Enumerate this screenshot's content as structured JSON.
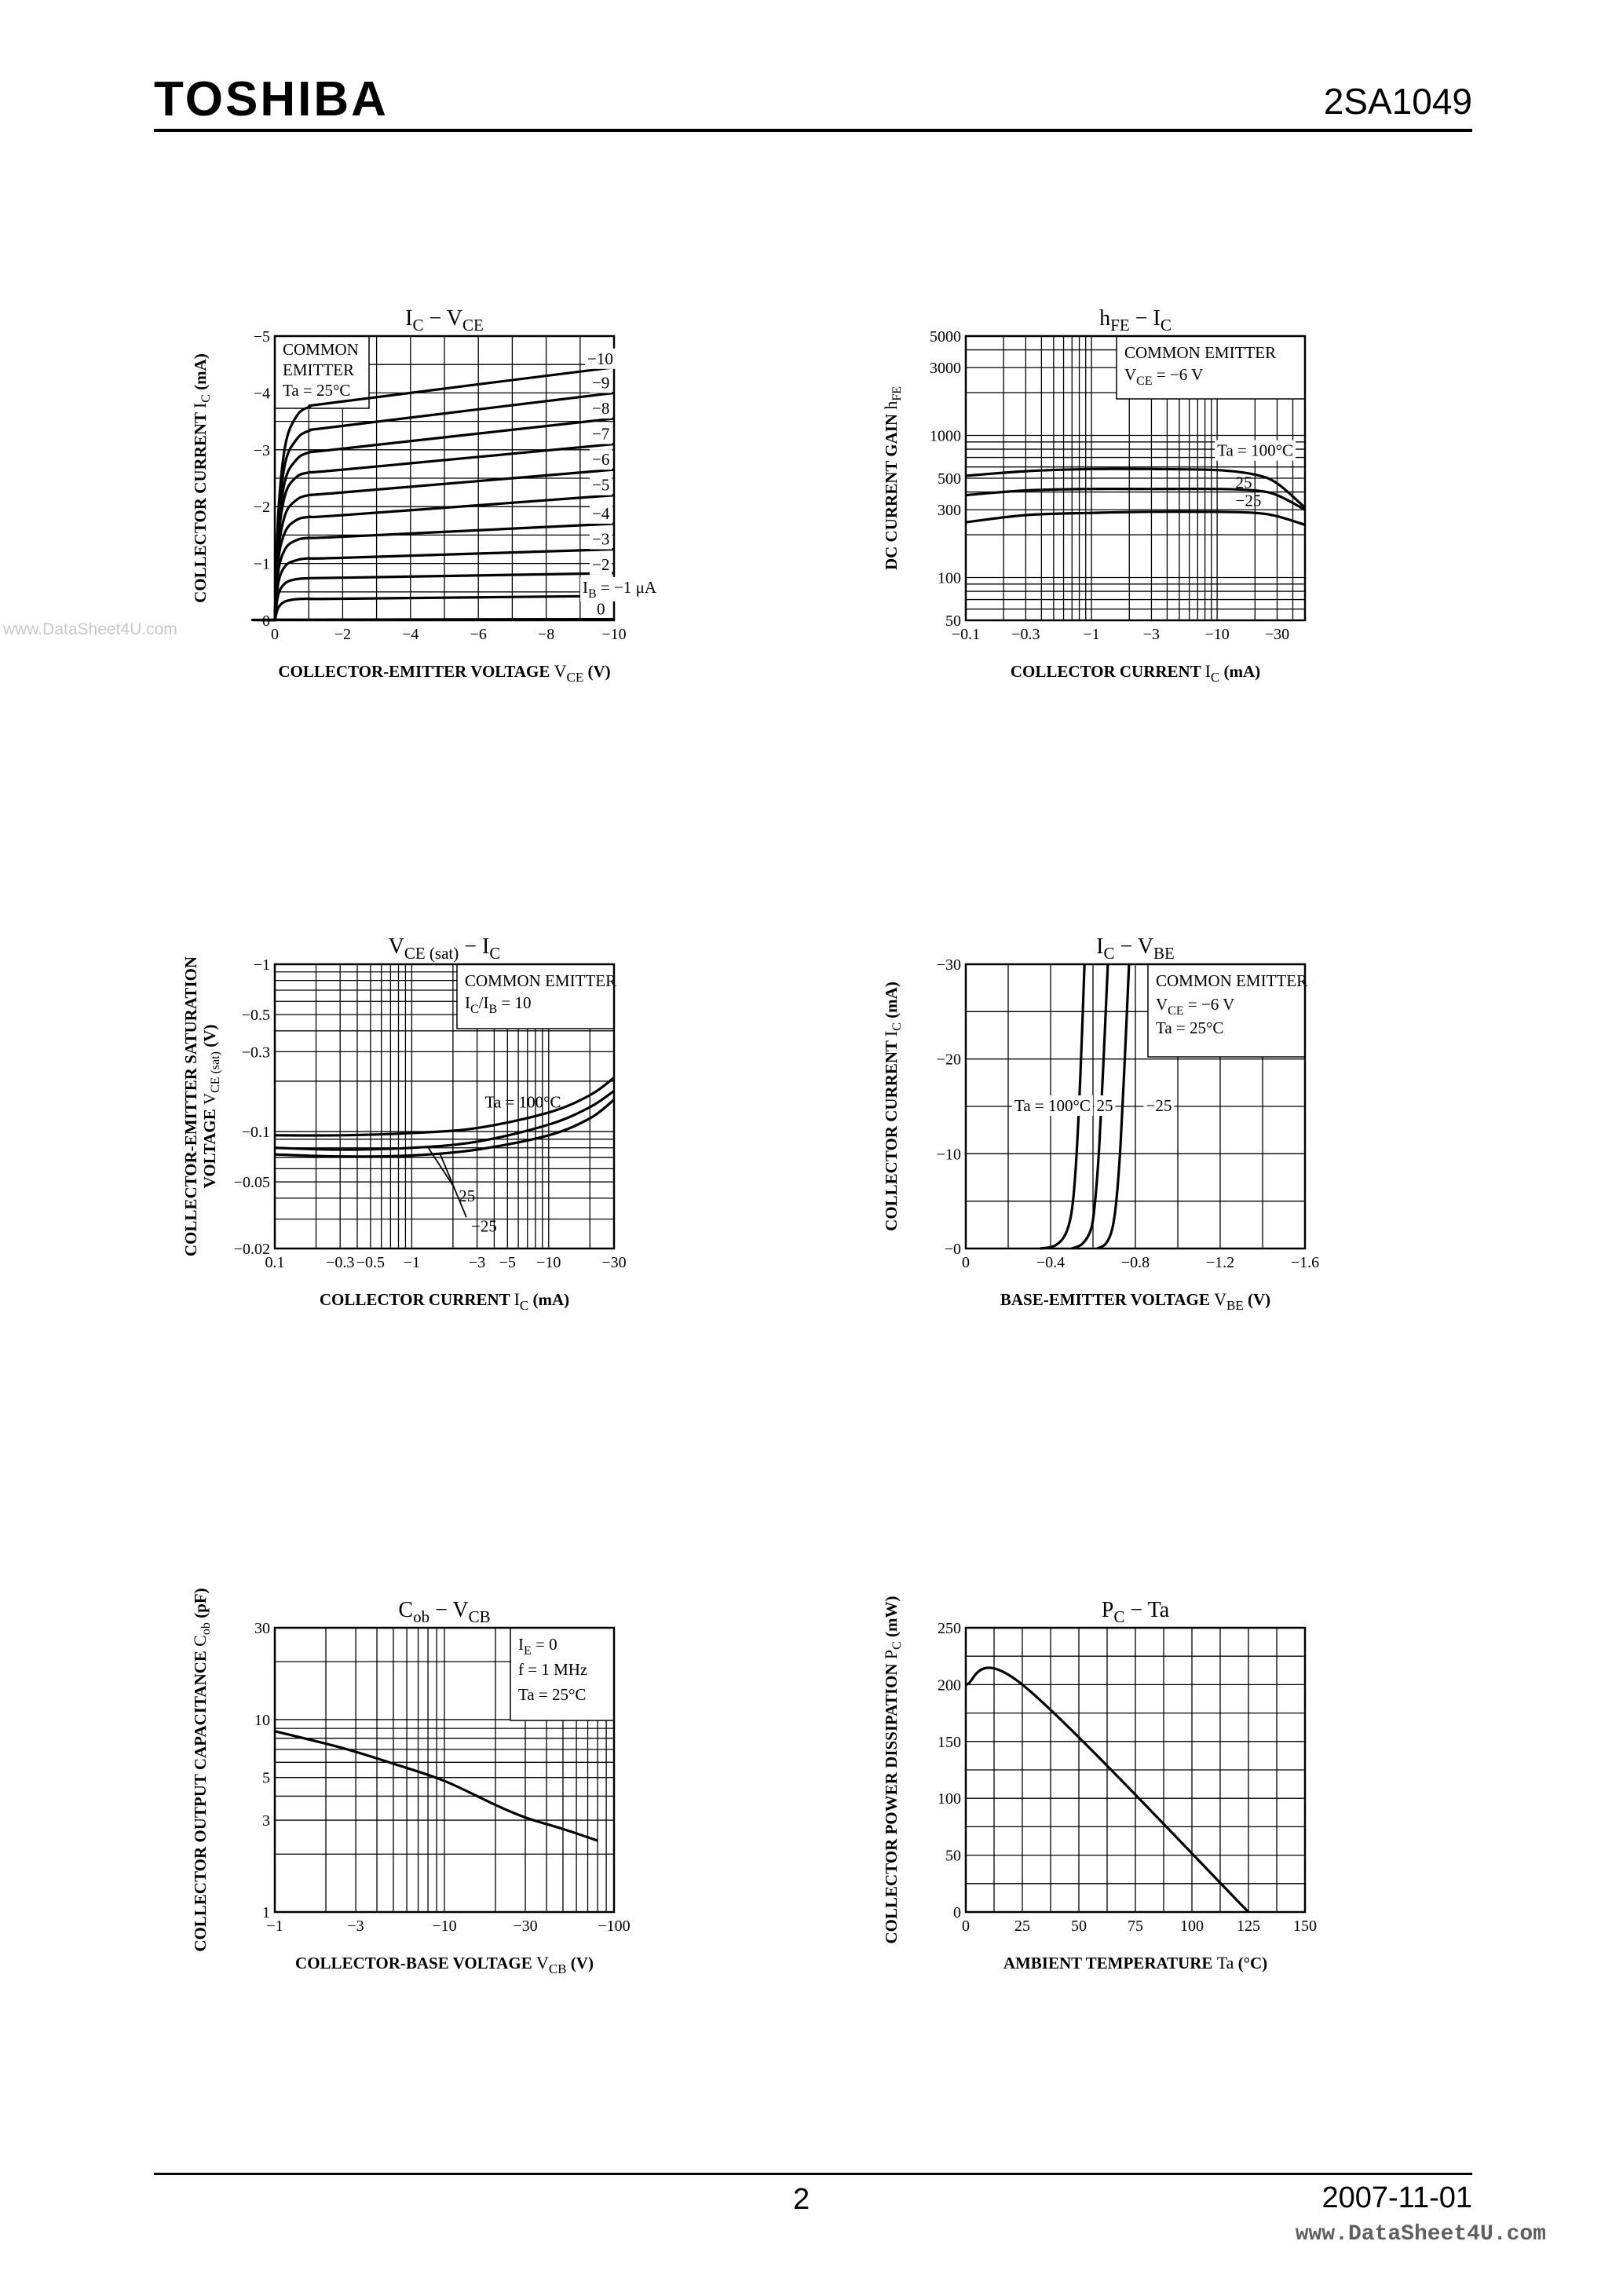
{
  "header": {
    "brand": "TOSHIBA",
    "part_number": "2SA1049"
  },
  "footer": {
    "page": "2",
    "date": "2007-11-01"
  },
  "watermark": {
    "left": "www.DataSheet4U.com",
    "bottom": "www.DataSheet4U.com"
  },
  "chart_data": [
    {
      "id": "ic-vce",
      "type": "line",
      "title": {
        "main": "I",
        "sub": "C",
        "sep": " − ",
        "main2": "V",
        "sub2": "CE"
      },
      "xlabel": {
        "text": "COLLECTOR-EMITTER VOLTAGE",
        "sym": "V",
        "sub": "CE",
        "unit": "(V)"
      },
      "ylabel": {
        "text": "COLLECTOR CURRENT",
        "sym": "I",
        "sub": "C",
        "unit": "(mA)"
      },
      "xscale": "linear",
      "yscale": "linear",
      "xlim": [
        0,
        10
      ],
      "ylim": [
        0,
        5
      ],
      "xgrid": [
        0,
        1,
        2,
        3,
        4,
        5,
        6,
        7,
        8,
        9,
        10
      ],
      "ygrid": [
        0,
        0.5,
        1,
        1.5,
        2,
        2.5,
        3,
        3.5,
        4,
        4.5,
        5
      ],
      "xticks": [
        {
          "v": 0,
          "t": "0"
        },
        {
          "v": 2,
          "t": "−2"
        },
        {
          "v": 4,
          "t": "−4"
        },
        {
          "v": 6,
          "t": "−6"
        },
        {
          "v": 8,
          "t": "−8"
        },
        {
          "v": 10,
          "t": "−10"
        }
      ],
      "yticks": [
        {
          "v": 0,
          "t": "−0"
        },
        {
          "v": 1,
          "t": "−1"
        },
        {
          "v": 2,
          "t": "−2"
        },
        {
          "v": 3,
          "t": "−3"
        },
        {
          "v": 4,
          "t": "−4"
        },
        {
          "v": 5,
          "t": "−5"
        }
      ],
      "legend_box": {
        "lines": [
          "COMMON",
          "EMITTER",
          "Ta = 25°C"
        ],
        "position": "top-left"
      },
      "series": [
        {
          "name": "0",
          "label": "0",
          "x": [
            0,
            0.1,
            10
          ],
          "y": [
            0,
            0.01,
            0.02
          ]
        },
        {
          "name": "IB=-1",
          "label": "I_B = −1 μA",
          "x": [
            0,
            0.1,
            0.3,
            0.6,
            1,
            2,
            10
          ],
          "y": [
            0,
            0.22,
            0.33,
            0.37,
            0.38,
            0.38,
            0.43
          ]
        },
        {
          "name": "-2",
          "label": "−2",
          "x": [
            0,
            0.1,
            0.3,
            0.6,
            1,
            2,
            10
          ],
          "y": [
            0,
            0.45,
            0.65,
            0.72,
            0.74,
            0.75,
            0.83
          ]
        },
        {
          "name": "-3",
          "label": "−3",
          "x": [
            0,
            0.1,
            0.3,
            0.6,
            1,
            2,
            10
          ],
          "y": [
            0,
            0.65,
            0.95,
            1.05,
            1.09,
            1.1,
            1.25
          ]
        },
        {
          "name": "-4",
          "label": "−4",
          "x": [
            0,
            0.1,
            0.3,
            0.6,
            1,
            2,
            10
          ],
          "y": [
            0,
            0.85,
            1.25,
            1.4,
            1.45,
            1.47,
            1.7
          ]
        },
        {
          "name": "-5",
          "label": "−5",
          "x": [
            0,
            0.1,
            0.3,
            0.6,
            1,
            2,
            10
          ],
          "y": [
            0,
            1.05,
            1.55,
            1.75,
            1.82,
            1.85,
            2.2
          ]
        },
        {
          "name": "-6",
          "label": "−6",
          "x": [
            0,
            0.1,
            0.3,
            0.6,
            1,
            2,
            10
          ],
          "y": [
            0,
            1.2,
            1.85,
            2.1,
            2.2,
            2.25,
            2.65
          ]
        },
        {
          "name": "-7",
          "label": "−7",
          "x": [
            0,
            0.1,
            0.3,
            0.6,
            1,
            2,
            10
          ],
          "y": [
            0,
            1.4,
            2.2,
            2.5,
            2.6,
            2.65,
            3.1
          ]
        },
        {
          "name": "-8",
          "label": "−8",
          "x": [
            0,
            0.1,
            0.3,
            0.6,
            1,
            2,
            10
          ],
          "y": [
            0,
            1.55,
            2.45,
            2.8,
            2.95,
            3.02,
            3.55
          ]
        },
        {
          "name": "-9",
          "label": "−9",
          "x": [
            0,
            0.1,
            0.3,
            0.6,
            1,
            2,
            10
          ],
          "y": [
            0,
            1.7,
            2.75,
            3.15,
            3.33,
            3.42,
            4.0
          ]
        },
        {
          "name": "-10",
          "label": "−10",
          "x": [
            0,
            0.1,
            0.3,
            0.6,
            1,
            2,
            10
          ],
          "y": [
            0,
            1.85,
            3.05,
            3.55,
            3.75,
            3.85,
            4.45
          ]
        }
      ]
    },
    {
      "id": "hfe-ic",
      "type": "line",
      "title": {
        "main": "h",
        "sub": "FE",
        "sep": " − ",
        "main2": "I",
        "sub2": "C"
      },
      "xlabel": {
        "text": "COLLECTOR CURRENT",
        "sym": "I",
        "sub": "C",
        "unit": "(mA)"
      },
      "ylabel": {
        "text": "DC CURRENT GAIN",
        "sym": "h",
        "sub": "FE",
        "unit": ""
      },
      "xscale": "log",
      "yscale": "log",
      "xlim": [
        0.1,
        50
      ],
      "ylim": [
        50,
        5000
      ],
      "xgrid": [
        0.1,
        0.2,
        0.3,
        0.4,
        0.5,
        0.6,
        0.7,
        0.8,
        0.9,
        1,
        2,
        3,
        4,
        5,
        6,
        7,
        8,
        9,
        10,
        20,
        30,
        40,
        50
      ],
      "ygrid": [
        50,
        60,
        70,
        80,
        90,
        100,
        200,
        300,
        400,
        500,
        600,
        700,
        800,
        900,
        1000,
        2000,
        3000,
        4000,
        5000
      ],
      "xticks": [
        {
          "v": 0.1,
          "t": "−0.1"
        },
        {
          "v": 0.3,
          "t": "−0.3"
        },
        {
          "v": 1,
          "t": "−1"
        },
        {
          "v": 3,
          "t": "−3"
        },
        {
          "v": 10,
          "t": "−10"
        },
        {
          "v": 30,
          "t": "−30"
        }
      ],
      "yticks": [
        {
          "v": 50,
          "t": "50"
        },
        {
          "v": 100,
          "t": "100"
        },
        {
          "v": 300,
          "t": "300"
        },
        {
          "v": 500,
          "t": "500"
        },
        {
          "v": 1000,
          "t": "1000"
        },
        {
          "v": 3000,
          "t": "3000"
        },
        {
          "v": 5000,
          "t": "5000"
        }
      ],
      "legend_box": {
        "lines": [
          "COMMON EMITTER",
          "V_CE = −6 V"
        ],
        "position": "top-right"
      },
      "series": [
        {
          "name": "Ta=100",
          "label": "Ta = 100°C",
          "x": [
            0.1,
            0.3,
            1,
            3,
            10,
            20,
            30,
            50
          ],
          "y": [
            520,
            560,
            580,
            580,
            570,
            530,
            460,
            310
          ]
        },
        {
          "name": "Ta=25",
          "label": "25",
          "x": [
            0.1,
            0.3,
            1,
            3,
            10,
            20,
            30,
            50
          ],
          "y": [
            380,
            410,
            420,
            420,
            420,
            410,
            380,
            300
          ]
        },
        {
          "name": "Ta=-25",
          "label": "−25",
          "x": [
            0.1,
            0.3,
            1,
            3,
            10,
            20,
            30,
            50
          ],
          "y": [
            245,
            275,
            285,
            290,
            290,
            285,
            270,
            235
          ]
        }
      ]
    },
    {
      "id": "vcesat-ic",
      "type": "line",
      "title": {
        "main": "V",
        "sub": "CE (sat)",
        "sep": " − ",
        "main2": "I",
        "sub2": "C"
      },
      "xlabel": {
        "text": "COLLECTOR CURRENT",
        "sym": "I",
        "sub": "C",
        "unit": "(mA)"
      },
      "ylabel": {
        "text": "COLLECTOR-EMITTER SATURATION",
        "text2": "VOLTAGE",
        "sym": "V",
        "sub": "CE (sat)",
        "unit": "(V)"
      },
      "xscale": "log",
      "yscale": "log",
      "xlim": [
        0.1,
        30
      ],
      "ylim": [
        0.02,
        1
      ],
      "xgrid": [
        0.1,
        0.2,
        0.3,
        0.4,
        0.5,
        0.6,
        0.7,
        0.8,
        0.9,
        1,
        2,
        3,
        4,
        5,
        6,
        7,
        8,
        9,
        10,
        20,
        30
      ],
      "ygrid": [
        0.02,
        0.03,
        0.04,
        0.05,
        0.06,
        0.07,
        0.08,
        0.09,
        0.1,
        0.2,
        0.3,
        0.4,
        0.5,
        0.6,
        0.7,
        0.8,
        0.9,
        1
      ],
      "xticks": [
        {
          "v": 0.1,
          "t": "0.1"
        },
        {
          "v": 0.3,
          "t": "−0.3"
        },
        {
          "v": 0.5,
          "t": "−0.5"
        },
        {
          "v": 1,
          "t": "−1"
        },
        {
          "v": 3,
          "t": "−3"
        },
        {
          "v": 5,
          "t": "−5"
        },
        {
          "v": 10,
          "t": "−10"
        },
        {
          "v": 30,
          "t": "−30"
        }
      ],
      "yticks": [
        {
          "v": 0.02,
          "t": "−0.02"
        },
        {
          "v": 0.05,
          "t": "−0.05"
        },
        {
          "v": 0.1,
          "t": "−0.1"
        },
        {
          "v": 0.3,
          "t": "−0.3"
        },
        {
          "v": 0.5,
          "t": "−0.5"
        },
        {
          "v": 1,
          "t": "−1"
        }
      ],
      "legend_box": {
        "lines": [
          "COMMON EMITTER",
          "I_C/I_B = 10"
        ],
        "position": "top-right"
      },
      "series": [
        {
          "name": "Ta=100",
          "label": "Ta = 100°C",
          "x": [
            0.1,
            0.3,
            1,
            3,
            10,
            20,
            30
          ],
          "y": [
            0.095,
            0.095,
            0.098,
            0.105,
            0.13,
            0.165,
            0.21
          ]
        },
        {
          "name": "Ta=25",
          "label": "25",
          "x": [
            0.1,
            0.3,
            1,
            3,
            10,
            20,
            30
          ],
          "y": [
            0.08,
            0.078,
            0.08,
            0.087,
            0.11,
            0.14,
            0.175
          ]
        },
        {
          "name": "Ta=-25",
          "label": "−25",
          "x": [
            0.1,
            0.3,
            1,
            3,
            10,
            20,
            30
          ],
          "y": [
            0.073,
            0.071,
            0.072,
            0.078,
            0.095,
            0.12,
            0.155
          ]
        }
      ]
    },
    {
      "id": "ic-vbe",
      "type": "line",
      "title": {
        "main": "I",
        "sub": "C",
        "sep": " − ",
        "main2": "V",
        "sub2": "BE"
      },
      "xlabel": {
        "text": "BASE-EMITTER VOLTAGE",
        "sym": "V",
        "sub": "BE",
        "unit": "(V)"
      },
      "ylabel": {
        "text": "COLLECTOR CURRENT",
        "sym": "I",
        "sub": "C",
        "unit": "(mA)"
      },
      "xscale": "linear",
      "yscale": "linear",
      "xlim": [
        0,
        1.6
      ],
      "ylim": [
        0,
        30
      ],
      "xgrid": [
        0,
        0.2,
        0.4,
        0.6,
        0.8,
        1.0,
        1.2,
        1.4,
        1.6
      ],
      "ygrid": [
        0,
        5,
        10,
        15,
        20,
        25,
        30
      ],
      "xticks": [
        {
          "v": 0,
          "t": "0"
        },
        {
          "v": 0.4,
          "t": "−0.4"
        },
        {
          "v": 0.8,
          "t": "−0.8"
        },
        {
          "v": 1.2,
          "t": "−1.2"
        },
        {
          "v": 1.6,
          "t": "−1.6"
        }
      ],
      "yticks": [
        {
          "v": 0,
          "t": "−0"
        },
        {
          "v": 10,
          "t": "−10"
        },
        {
          "v": 20,
          "t": "−20"
        },
        {
          "v": 30,
          "t": "−30"
        }
      ],
      "legend_box": {
        "lines": [
          "COMMON EMITTER",
          "V_CE = −6 V",
          "Ta = 25°C"
        ],
        "position": "top-right"
      },
      "series": [
        {
          "name": "Ta=100",
          "label": "Ta = 100°C",
          "x": [
            0.35,
            0.42,
            0.47,
            0.5,
            0.52,
            0.54,
            0.56
          ],
          "y": [
            0,
            0.3,
            1.5,
            4,
            9,
            18,
            30
          ]
        },
        {
          "name": "Ta=25",
          "label": "25",
          "x": [
            0.5,
            0.55,
            0.59,
            0.61,
            0.63,
            0.65,
            0.67
          ],
          "y": [
            0,
            0.5,
            2,
            5,
            11,
            20,
            30
          ]
        },
        {
          "name": "Ta=-25",
          "label": "−25",
          "x": [
            0.62,
            0.66,
            0.69,
            0.71,
            0.73,
            0.75,
            0.77
          ],
          "y": [
            0,
            0.5,
            2,
            5,
            11,
            20,
            30
          ]
        }
      ]
    },
    {
      "id": "cob-vcb",
      "type": "line",
      "title": {
        "main": "C",
        "sub": "ob",
        "sep": " − ",
        "main2": "V",
        "sub2": "CB"
      },
      "xlabel": {
        "text": "COLLECTOR-BASE VOLTAGE",
        "sym": "V",
        "sub": "CB",
        "unit": "(V)"
      },
      "ylabel": {
        "text": "COLLECTOR OUTPUT CAPACITANCE",
        "sym": "C",
        "sub": "ob",
        "unit": "(pF)"
      },
      "xscale": "log",
      "yscale": "log",
      "xlim": [
        1,
        100
      ],
      "ylim": [
        1,
        30
      ],
      "xgrid": [
        1,
        2,
        3,
        4,
        5,
        6,
        7,
        8,
        9,
        10,
        20,
        30,
        40,
        50,
        60,
        70,
        80,
        90,
        100
      ],
      "ygrid": [
        1,
        2,
        3,
        4,
        5,
        6,
        7,
        8,
        9,
        10,
        20,
        30
      ],
      "xticks": [
        {
          "v": 1,
          "t": "−1"
        },
        {
          "v": 3,
          "t": "−3"
        },
        {
          "v": 10,
          "t": "−10"
        },
        {
          "v": 30,
          "t": "−30"
        },
        {
          "v": 100,
          "t": "−100"
        }
      ],
      "yticks": [
        {
          "v": 1,
          "t": "1"
        },
        {
          "v": 3,
          "t": "3"
        },
        {
          "v": 5,
          "t": "5"
        },
        {
          "v": 10,
          "t": "10"
        },
        {
          "v": 30,
          "t": "30"
        }
      ],
      "legend_box": {
        "lines": [
          "I_E = 0",
          "f = 1 MHz",
          "Ta = 25°C"
        ],
        "position": "top-right"
      },
      "series": [
        {
          "name": "Cob",
          "label": "",
          "x": [
            1,
            2,
            3,
            5,
            10,
            20,
            30,
            50,
            80
          ],
          "y": [
            8.7,
            7.5,
            6.8,
            5.9,
            4.8,
            3.6,
            3.1,
            2.7,
            2.35
          ]
        }
      ]
    },
    {
      "id": "pc-ta",
      "type": "line",
      "title": {
        "main": "P",
        "sub": "C",
        "sep": " − ",
        "main2": "Ta",
        "sub2": ""
      },
      "xlabel": {
        "text": "AMBIENT TEMPERATURE",
        "sym": "Ta",
        "sub": "",
        "unit": "(°C)"
      },
      "ylabel": {
        "text": "COLLECTOR POWER DISSIPATION",
        "sym": "P",
        "sub": "C",
        "unit": "(mW)"
      },
      "xscale": "linear",
      "yscale": "linear",
      "xlim": [
        0,
        150
      ],
      "ylim": [
        0,
        250
      ],
      "xgrid": [
        0,
        12.5,
        25,
        37.5,
        50,
        62.5,
        75,
        87.5,
        100,
        112.5,
        125,
        137.5,
        150
      ],
      "ygrid": [
        0,
        25,
        50,
        75,
        100,
        125,
        150,
        175,
        200,
        225,
        250
      ],
      "xticks": [
        {
          "v": 0,
          "t": "0"
        },
        {
          "v": 25,
          "t": "25"
        },
        {
          "v": 50,
          "t": "50"
        },
        {
          "v": 75,
          "t": "75"
        },
        {
          "v": 100,
          "t": "100"
        },
        {
          "v": 125,
          "t": "125"
        },
        {
          "v": 150,
          "t": "150"
        }
      ],
      "yticks": [
        {
          "v": 0,
          "t": "0"
        },
        {
          "v": 50,
          "t": "50"
        },
        {
          "v": 100,
          "t": "100"
        },
        {
          "v": 150,
          "t": "150"
        },
        {
          "v": 200,
          "t": "200"
        },
        {
          "v": 250,
          "t": "250"
        }
      ],
      "legend_box": null,
      "series": [
        {
          "name": "PC",
          "label": "",
          "x": [
            0,
            25,
            125
          ],
          "y": [
            200,
            200,
            0
          ]
        }
      ]
    }
  ]
}
